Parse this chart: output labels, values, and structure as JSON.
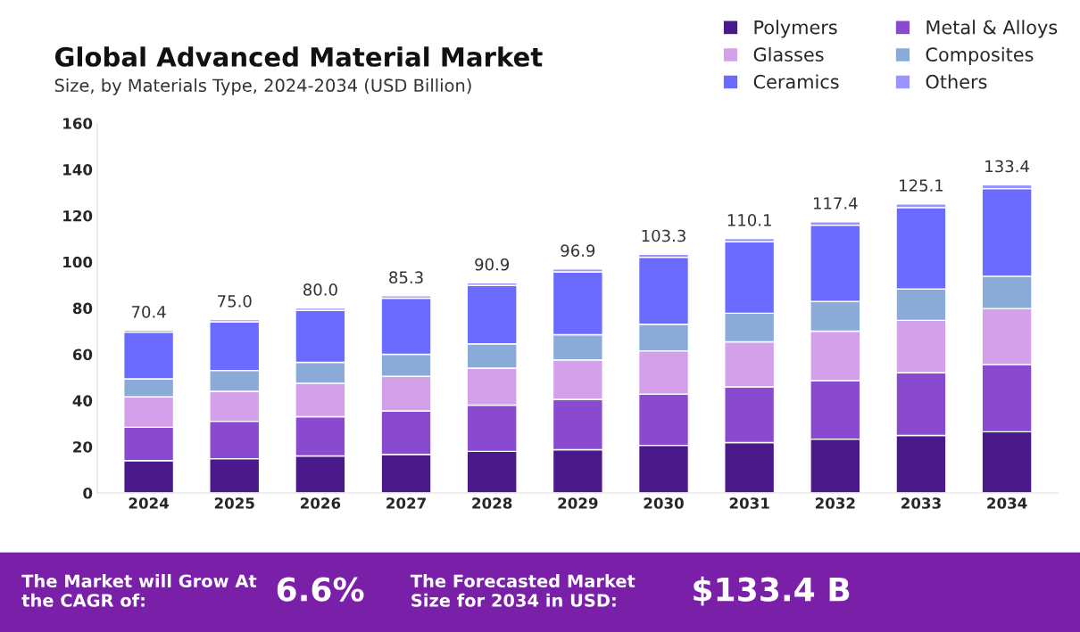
{
  "chart_data": {
    "type": "bar",
    "title": "Global Advanced Material Market",
    "subtitle": "Size, by Materials Type, 2024-2034 (USD Billion)",
    "categories": [
      "2024",
      "2025",
      "2026",
      "2027",
      "2028",
      "2029",
      "2030",
      "2031",
      "2032",
      "2033",
      "2034"
    ],
    "stacked": true,
    "series": [
      {
        "name": "Polymers",
        "color": "#4a1a8a",
        "values": [
          14,
          14.8,
          16,
          16.7,
          18,
          18.7,
          20.6,
          21.8,
          23.3,
          24.9,
          26.5
        ]
      },
      {
        "name": "Metal & Alloys",
        "color": "#8a4ad0",
        "values": [
          14.4,
          16.2,
          17,
          18.8,
          20,
          21.8,
          22.2,
          24.1,
          25.3,
          27.2,
          29.1
        ]
      },
      {
        "name": "Glasses",
        "color": "#d4a0ea",
        "values": [
          13.2,
          13,
          14.5,
          15,
          16,
          17.1,
          18.7,
          19.5,
          21.4,
          22.6,
          24.2
        ]
      },
      {
        "name": "Composites",
        "color": "#8aaad8",
        "values": [
          7.8,
          9,
          9,
          9.5,
          10.5,
          10.9,
          11.5,
          12.4,
          12.9,
          13.6,
          14
        ]
      },
      {
        "name": "Ceramics",
        "color": "#6b6bff",
        "values": [
          20.2,
          21.1,
          22.5,
          24.3,
          25.3,
          27.2,
          29,
          30.9,
          33,
          35.2,
          37.9
        ]
      },
      {
        "name": "Others",
        "color": "#9a94ff",
        "values": [
          0.8,
          0.9,
          1,
          1,
          1.1,
          1.2,
          1.3,
          1.4,
          1.5,
          1.6,
          1.7
        ]
      }
    ],
    "totals": [
      "70.4",
      "75.0",
      "80.0",
      "85.3",
      "90.9",
      "96.9",
      "103.3",
      "110.1",
      "117.4",
      "125.1",
      "133.4"
    ],
    "ylim": [
      0,
      160
    ],
    "yticks": [
      0,
      20,
      40,
      60,
      80,
      100,
      120,
      140,
      160
    ],
    "grid": false,
    "legend": "top right",
    "annotations": [
      "The Market will Grow At the CAGR of:",
      "6.6%",
      "The Forecasted Market Size for 2034 in USD:",
      "$133.4 B"
    ]
  }
}
